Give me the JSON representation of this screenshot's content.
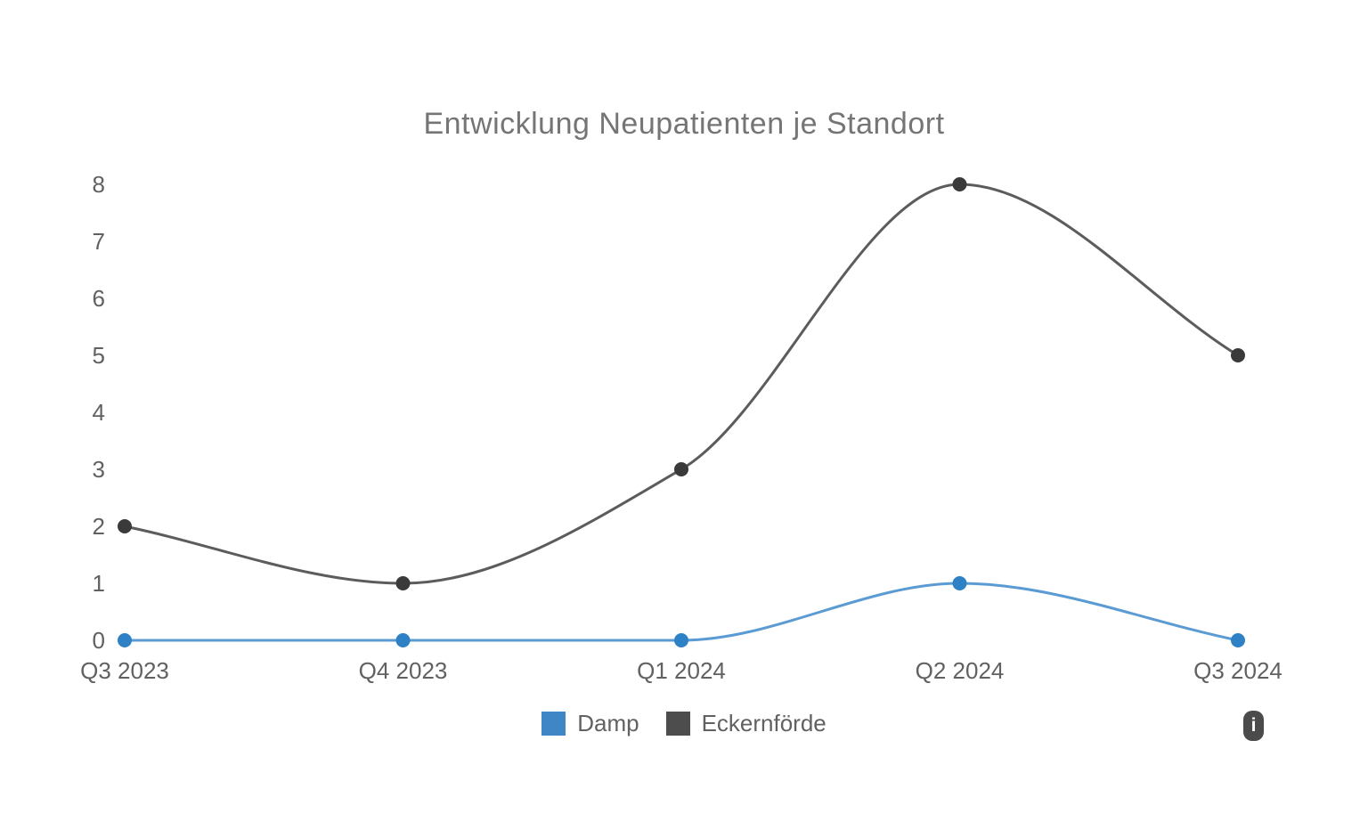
{
  "chart_data": {
    "type": "line",
    "title": "Entwicklung Neupatienten je Standort",
    "categories": [
      "Q3 2023",
      "Q4 2023",
      "Q1 2024",
      "Q2 2024",
      "Q3 2024"
    ],
    "series": [
      {
        "name": "Damp",
        "values": [
          0,
          0,
          0,
          1,
          0
        ],
        "color": "#3e86c6",
        "line_color": "#5b9bd3",
        "point_color": "#2e81c4"
      },
      {
        "name": "Eckernförde",
        "values": [
          2,
          1,
          3,
          8,
          5
        ],
        "color": "#4d4d4d",
        "line_color": "#5c5c5c",
        "point_color": "#3a3a3a"
      }
    ],
    "xlabel": "",
    "ylabel": "",
    "ylim": [
      0,
      8
    ],
    "y_ticks": [
      0,
      1,
      2,
      3,
      4,
      5,
      6,
      7,
      8
    ],
    "grid": false,
    "legend_position": "bottom",
    "curve": "monotone"
  },
  "info_button": {
    "glyph": "i"
  }
}
